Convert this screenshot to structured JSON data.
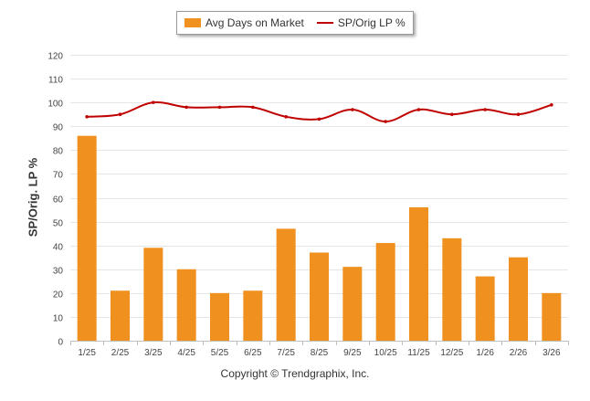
{
  "legend": {
    "bar_label": "Avg Days on Market",
    "line_label": "SP/Orig LP %"
  },
  "footer": {
    "copyright": "Copyright © Trendgraphix, Inc."
  },
  "chart_data": {
    "type": "bar",
    "ylabel": "SP/Orig. LP %",
    "xlabel": "",
    "ylim": [
      0,
      120
    ],
    "yticks": [
      0,
      10,
      20,
      30,
      40,
      50,
      60,
      70,
      80,
      90,
      100,
      110,
      120
    ],
    "grid": true,
    "legend_position": "top-center",
    "categories": [
      "1/25",
      "2/25",
      "3/25",
      "4/25",
      "5/25",
      "6/25",
      "7/25",
      "8/25",
      "9/25",
      "10/25",
      "11/25",
      "12/25",
      "1/26",
      "2/26",
      "3/26"
    ],
    "series": [
      {
        "name": "Avg Days on Market",
        "type": "bar",
        "color": "#f0901e",
        "values": [
          86,
          21,
          39,
          30,
          20,
          21,
          47,
          37,
          31,
          41,
          56,
          43,
          27,
          35,
          20
        ]
      },
      {
        "name": "SP/Orig LP %",
        "type": "line",
        "color": "#c00000",
        "values": [
          94,
          95,
          100,
          98,
          98,
          98,
          94,
          93,
          97,
          92,
          97,
          95,
          97,
          95,
          99
        ]
      }
    ]
  }
}
